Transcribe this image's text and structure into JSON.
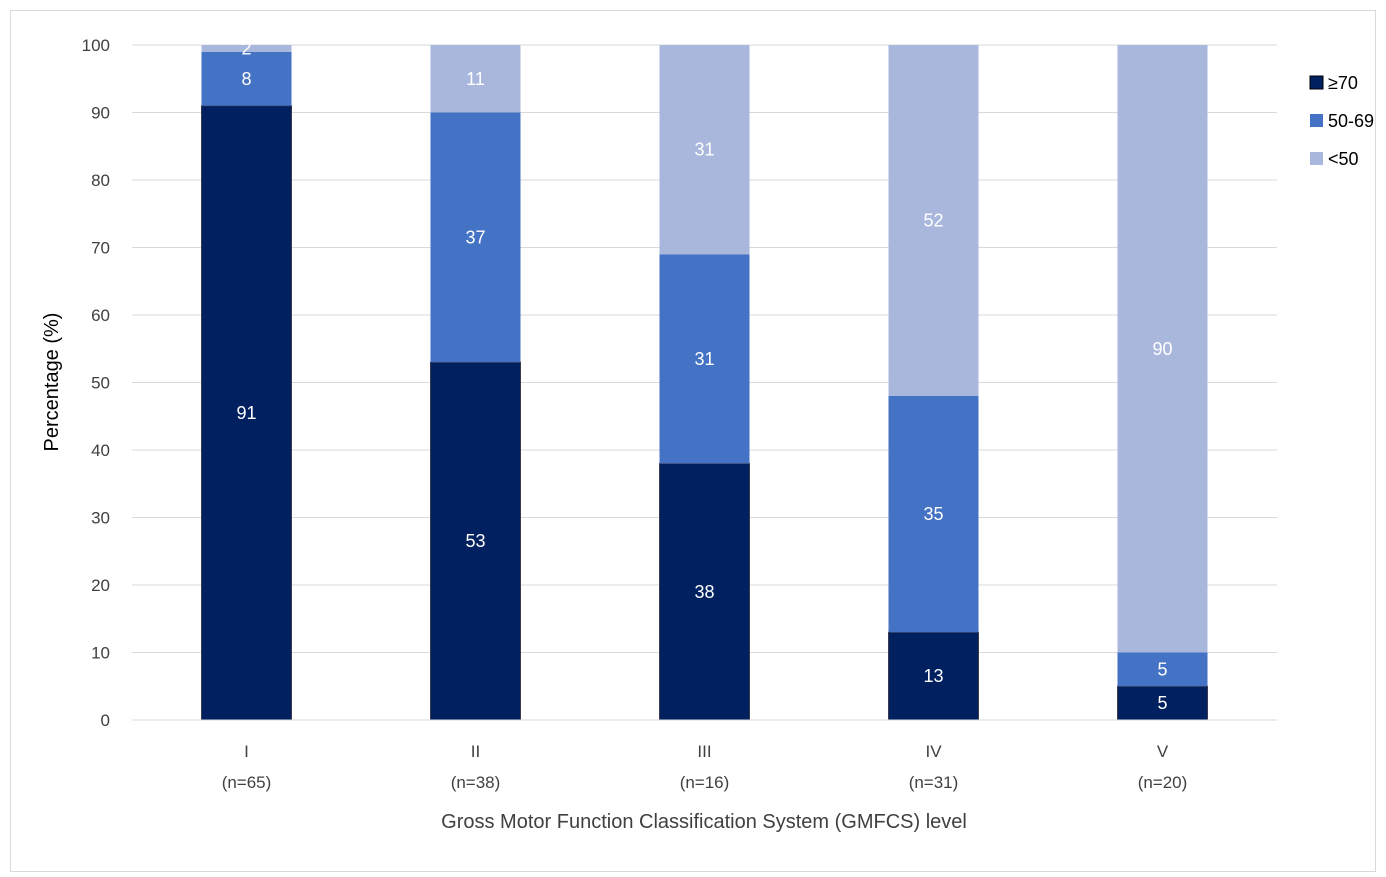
{
  "chart_data": {
    "type": "bar",
    "stacked": true,
    "categories": [
      "I",
      "II",
      "III",
      "IV",
      "V"
    ],
    "category_counts": [
      "(n=65)",
      "(n=38)",
      "(n=16)",
      "(n=31)",
      "(n=20)"
    ],
    "series": [
      {
        "name": "≥70",
        "color": "#002060",
        "values": [
          91,
          53,
          38,
          13,
          5
        ]
      },
      {
        "name": "50-69",
        "color": "#4472C4",
        "values": [
          8,
          37,
          31,
          35,
          5
        ]
      },
      {
        "name": "<50",
        "color": "#A9B7DC",
        "values": [
          2,
          11,
          31,
          52,
          90
        ]
      }
    ],
    "xlabel": "Gross Motor Function Classification System (GMFCS) level",
    "ylabel": "Percentage (%)",
    "ylim": [
      0,
      100
    ],
    "yticks": [
      0,
      10,
      20,
      30,
      40,
      50,
      60,
      70,
      80,
      90,
      100
    ],
    "grid": true,
    "legend_position": "right"
  }
}
